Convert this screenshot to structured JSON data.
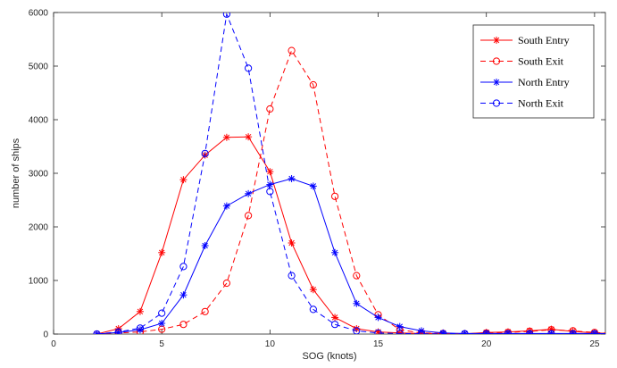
{
  "chart_data": {
    "type": "line",
    "title": "",
    "xlabel": "SOG (knots)",
    "ylabel": "number of ships",
    "xlim": [
      0,
      25.5
    ],
    "ylim": [
      0,
      6000
    ],
    "xticks": [
      0,
      5,
      10,
      15,
      20,
      25
    ],
    "yticks": [
      0,
      1000,
      2000,
      3000,
      4000,
      5000,
      6000
    ],
    "grid": false,
    "legend_position": "top-right",
    "x": [
      2,
      3,
      4,
      5,
      6,
      7,
      8,
      9,
      10,
      11,
      12,
      13,
      14,
      15,
      16,
      17,
      18,
      19,
      20,
      21,
      22,
      23,
      24,
      25,
      26
    ],
    "series": [
      {
        "name": "South Entry",
        "color": "#ff0000",
        "line_style": "solid",
        "marker": "asterisk",
        "values": [
          0,
          100,
          420,
          1520,
          2880,
          3340,
          3670,
          3680,
          3030,
          1700,
          830,
          310,
          100,
          40,
          20,
          10,
          10,
          5,
          30,
          40,
          60,
          90,
          50,
          20,
          10
        ]
      },
      {
        "name": "South Exit",
        "color": "#ff0000",
        "line_style": "dashed",
        "marker": "circle",
        "values": [
          0,
          20,
          40,
          90,
          180,
          420,
          950,
          2210,
          4200,
          5290,
          4650,
          2570,
          1090,
          360,
          80,
          20,
          10,
          5,
          20,
          30,
          50,
          80,
          60,
          30,
          10
        ]
      },
      {
        "name": "North Entry",
        "color": "#0000ff",
        "line_style": "solid",
        "marker": "asterisk",
        "values": [
          0,
          30,
          80,
          200,
          730,
          1650,
          2390,
          2620,
          2790,
          2900,
          2760,
          1520,
          570,
          310,
          140,
          60,
          20,
          10,
          10,
          10,
          10,
          10,
          10,
          10,
          5
        ]
      },
      {
        "name": "North Exit",
        "color": "#0000ff",
        "line_style": "dashed",
        "marker": "circle",
        "values": [
          0,
          40,
          110,
          390,
          1260,
          3370,
          5970,
          4960,
          2660,
          1090,
          460,
          180,
          60,
          20,
          10,
          5,
          5,
          5,
          5,
          5,
          5,
          5,
          5,
          5,
          5
        ]
      }
    ]
  }
}
